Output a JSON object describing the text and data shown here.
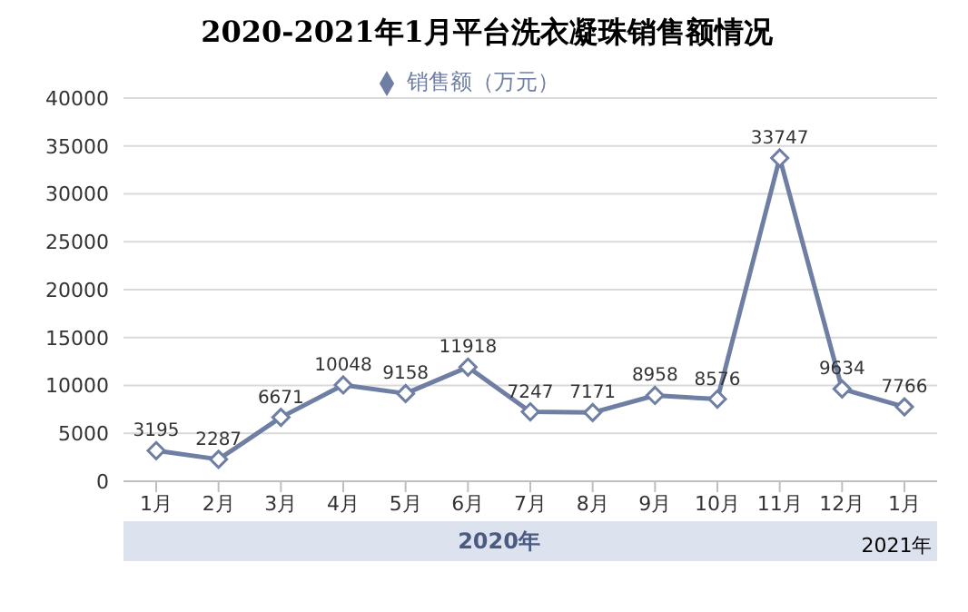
{
  "chart_data": {
    "type": "line",
    "title": "2020-2021年1月平台洗衣凝珠销售额情况",
    "categories": [
      "1月",
      "2月",
      "3月",
      "4月",
      "5月",
      "6月",
      "7月",
      "8月",
      "9月",
      "10月",
      "11月",
      "12月",
      "1月"
    ],
    "series": [
      {
        "name": "销售额（万元）",
        "color": "#6f7fa3",
        "values": [
          3195,
          2287,
          6671,
          10048,
          9158,
          11918,
          7247,
          7171,
          8958,
          8576,
          33747,
          9634,
          7766
        ]
      }
    ],
    "ylim": [
      0,
      40000
    ],
    "yticks": [
      0,
      5000,
      10000,
      15000,
      20000,
      25000,
      30000,
      35000,
      40000
    ],
    "grid": "y",
    "legend": "top",
    "marker": "diamond",
    "line_style": "solid",
    "data_labels": true,
    "annotations": [
      "2020年",
      "2021年"
    ]
  }
}
